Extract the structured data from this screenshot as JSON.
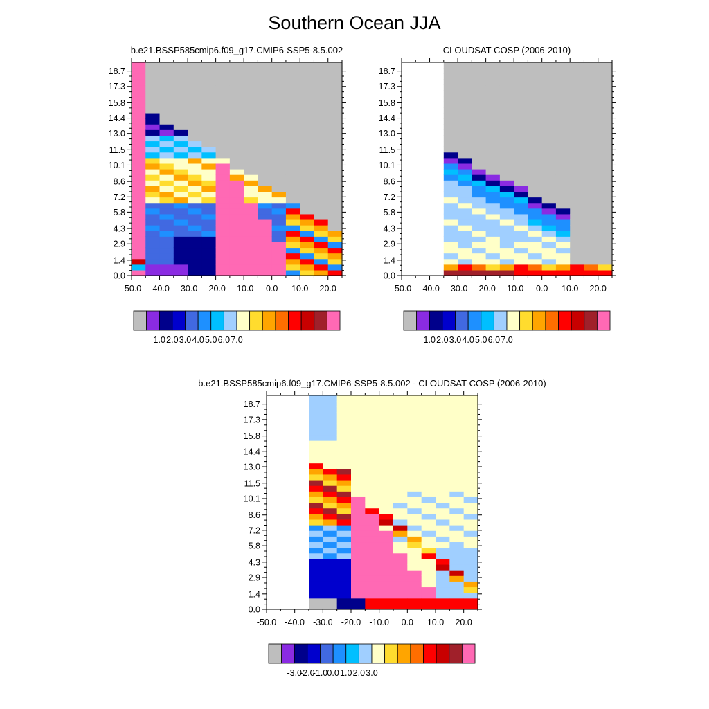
{
  "title": "Southern Ocean JJA",
  "chart_data": [
    {
      "type": "heatmap",
      "title": "b.e21.BSSP585cmip6.f09_g17.CMIP6-SSP5-8.5.002",
      "xlabel": "",
      "ylabel": "",
      "x_ticks": [
        "-50.0",
        "-40.0",
        "-30.0",
        "-20.0",
        "-10.0",
        "0.0",
        "10.0",
        "20.0"
      ],
      "y_ticks": [
        "0.0",
        "1.4",
        "2.9",
        "4.3",
        "5.8",
        "7.2",
        "8.6",
        "10.1",
        "11.5",
        "13.0",
        "14.4",
        "15.8",
        "17.3",
        "18.7"
      ],
      "xlim": [
        -50,
        25
      ],
      "ylim": [
        0,
        19.5
      ],
      "colorbar": {
        "colors": [
          "#bebebe",
          "#8a2be2",
          "#00008b",
          "#0000cd",
          "#4169e1",
          "#1e90ff",
          "#00bfff",
          "#a0cfff",
          "#ffffc8",
          "#ffdc2e",
          "#ffa500",
          "#ff6e00",
          "#ff0000",
          "#c80000",
          "#a0202a",
          "#ff69b4"
        ],
        "labels": [
          "1.0",
          "2.0",
          "3.0",
          "4.0",
          "5.0",
          "6.0",
          "7.0"
        ]
      }
    },
    {
      "type": "heatmap",
      "title": "CLOUDSAT-COSP (2006-2010)",
      "xlabel": "",
      "ylabel": "",
      "x_ticks": [
        "-50.0",
        "-40.0",
        "-30.0",
        "-20.0",
        "-10.0",
        "0.0",
        "10.0",
        "20.0"
      ],
      "y_ticks": [
        "0.0",
        "1.4",
        "2.9",
        "4.3",
        "5.8",
        "7.2",
        "8.6",
        "10.1",
        "11.5",
        "13.0",
        "14.4",
        "15.8",
        "17.3",
        "18.7"
      ],
      "xlim": [
        -50,
        25
      ],
      "ylim": [
        0,
        19.5
      ],
      "colorbar": {
        "colors": [
          "#bebebe",
          "#8a2be2",
          "#00008b",
          "#0000cd",
          "#4169e1",
          "#1e90ff",
          "#00bfff",
          "#a0cfff",
          "#ffffc8",
          "#ffdc2e",
          "#ffa500",
          "#ff6e00",
          "#ff0000",
          "#c80000",
          "#a0202a",
          "#ff69b4"
        ],
        "labels": [
          "1.0",
          "2.0",
          "3.0",
          "4.0",
          "5.0",
          "6.0",
          "7.0"
        ]
      }
    },
    {
      "type": "heatmap",
      "title": "b.e21.BSSP585cmip6.f09_g17.CMIP6-SSP5-8.5.002 - CLOUDSAT-COSP (2006-2010)",
      "xlabel": "",
      "ylabel": "",
      "x_ticks": [
        "-50.0",
        "-40.0",
        "-30.0",
        "-20.0",
        "-10.0",
        "0.0",
        "10.0",
        "20.0"
      ],
      "y_ticks": [
        "0.0",
        "1.4",
        "2.9",
        "4.3",
        "5.8",
        "7.2",
        "8.6",
        "10.1",
        "11.5",
        "13.0",
        "14.4",
        "15.8",
        "17.3",
        "18.7"
      ],
      "xlim": [
        -50,
        25
      ],
      "ylim": [
        0,
        19.5
      ],
      "colorbar": {
        "colors": [
          "#bebebe",
          "#8a2be2",
          "#00008b",
          "#0000cd",
          "#4169e1",
          "#1e90ff",
          "#00bfff",
          "#a0cfff",
          "#ffffc8",
          "#ffdc2e",
          "#ffa500",
          "#ff6e00",
          "#ff0000",
          "#c80000",
          "#a0202a",
          "#ff69b4"
        ],
        "labels": [
          "-3.0",
          "-2.0",
          "-1.0",
          "0.0",
          "1.0",
          "2.0",
          "3.0"
        ]
      }
    }
  ]
}
